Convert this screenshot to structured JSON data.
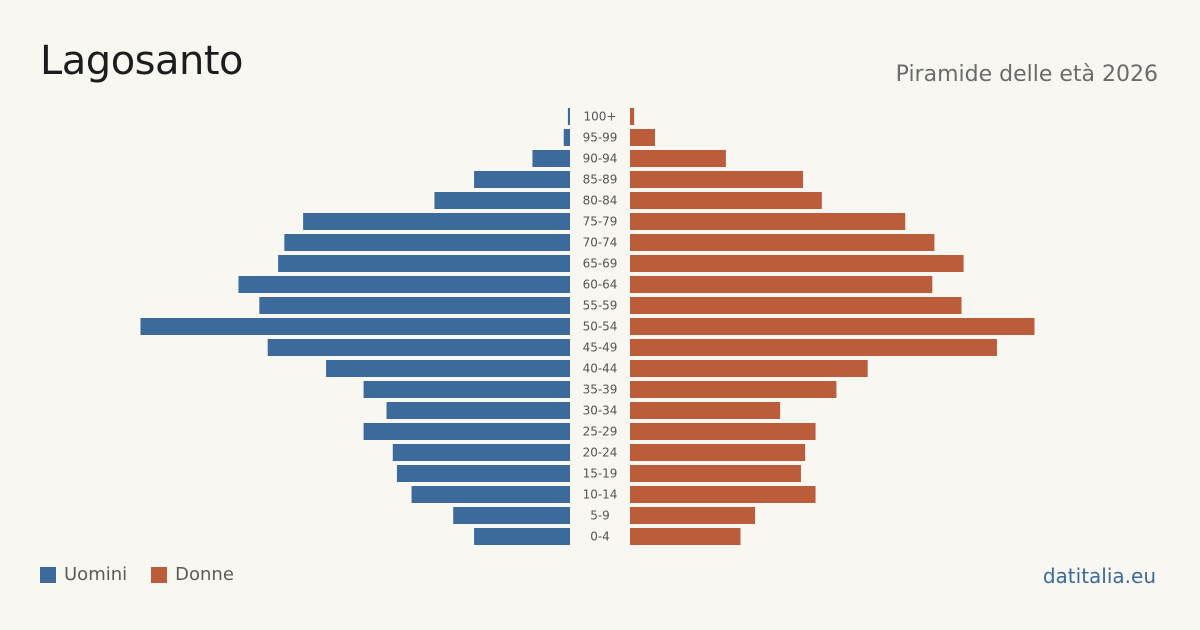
{
  "header": {
    "title": "Lagosanto",
    "subtitle": "Piramide delle età 2026"
  },
  "legend": {
    "men_label": "Uomini",
    "women_label": "Donne"
  },
  "brand": {
    "label": "datitalia.eu"
  },
  "colors": {
    "men": "#3b6a9b",
    "women": "#bb5c3b",
    "brand": "#3b6a9b"
  },
  "chart_data": {
    "type": "bar",
    "orientation": "horizontal",
    "categories": [
      "100+",
      "95-99",
      "90-94",
      "85-89",
      "80-84",
      "75-79",
      "70-74",
      "65-69",
      "60-64",
      "55-59",
      "50-54",
      "45-49",
      "40-44",
      "35-39",
      "30-34",
      "25-29",
      "20-24",
      "15-19",
      "10-14",
      "5-9",
      "0-4"
    ],
    "series": [
      {
        "name": "Uomini",
        "side": "left",
        "values": [
          1,
          3,
          18,
          46,
          65,
          128,
          137,
          140,
          159,
          149,
          206,
          145,
          117,
          99,
          88,
          99,
          85,
          83,
          76,
          56,
          46
        ]
      },
      {
        "name": "Donne",
        "side": "right",
        "values": [
          2,
          12,
          46,
          83,
          92,
          132,
          146,
          160,
          145,
          159,
          194,
          176,
          114,
          99,
          72,
          89,
          84,
          82,
          89,
          60,
          53
        ]
      }
    ],
    "grid": false,
    "legend_position": "bottom-left"
  }
}
